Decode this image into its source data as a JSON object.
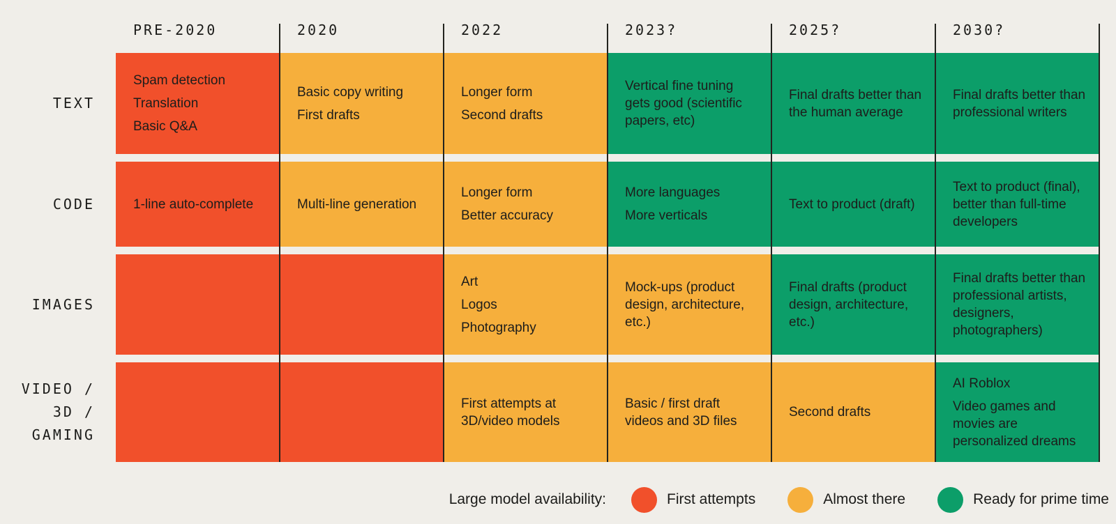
{
  "palette": {
    "background": "#F0EEE9",
    "orange": "#F1502B",
    "yellow": "#F6AF3C",
    "green": "#0C9E69",
    "divider": "#23241F",
    "text": "#1D1D1B"
  },
  "columns": [
    "PRE-2020",
    "2020",
    "2022",
    "2023?",
    "2025?",
    "2030?"
  ],
  "rows": [
    {
      "label": "TEXT",
      "label_lines": [
        "TEXT"
      ],
      "cells": [
        {
          "status": "orange",
          "items": [
            "Spam detection",
            "Translation",
            "Basic Q&A"
          ]
        },
        {
          "status": "yellow",
          "items": [
            "Basic copy writing",
            "First drafts"
          ]
        },
        {
          "status": "yellow",
          "items": [
            "Longer form",
            "Second drafts"
          ]
        },
        {
          "status": "green",
          "items": [
            "Vertical fine tuning gets good (scientific papers, etc)"
          ]
        },
        {
          "status": "green",
          "items": [
            "Final drafts better than the human average"
          ]
        },
        {
          "status": "green",
          "items": [
            "Final drafts better than professional writers"
          ]
        }
      ]
    },
    {
      "label": "CODE",
      "label_lines": [
        "CODE"
      ],
      "cells": [
        {
          "status": "orange",
          "items": [
            "1-line auto-complete"
          ]
        },
        {
          "status": "yellow",
          "items": [
            "Multi-line generation"
          ]
        },
        {
          "status": "yellow",
          "items": [
            "Longer form",
            "Better accuracy"
          ]
        },
        {
          "status": "green",
          "items": [
            "More languages",
            "More verticals"
          ]
        },
        {
          "status": "green",
          "items": [
            "Text to product (draft)"
          ]
        },
        {
          "status": "green",
          "items": [
            "Text to product (final), better than full-time developers"
          ]
        }
      ]
    },
    {
      "label": "IMAGES",
      "label_lines": [
        "IMAGES"
      ],
      "cells": [
        {
          "status": "orange",
          "items": []
        },
        {
          "status": "orange",
          "items": []
        },
        {
          "status": "yellow",
          "items": [
            "Art",
            "Logos",
            "Photography"
          ]
        },
        {
          "status": "yellow",
          "items": [
            "Mock-ups (product design, architecture, etc.)"
          ]
        },
        {
          "status": "green",
          "items": [
            "Final drafts (product design, architecture, etc.)"
          ]
        },
        {
          "status": "green",
          "items": [
            "Final drafts better than professional artists, designers, photographers)"
          ]
        }
      ]
    },
    {
      "label": "VIDEO / 3D / GAMING",
      "label_lines": [
        "VIDEO /",
        "3D /",
        "GAMING"
      ],
      "cells": [
        {
          "status": "orange",
          "items": []
        },
        {
          "status": "orange",
          "items": []
        },
        {
          "status": "yellow",
          "items": [
            "First attempts at 3D/video models"
          ]
        },
        {
          "status": "yellow",
          "items": [
            "Basic / first draft videos and 3D files"
          ]
        },
        {
          "status": "yellow",
          "items": [
            "Second drafts"
          ]
        },
        {
          "status": "green",
          "items": [
            "AI Roblox",
            "Video games and movies are personalized dreams"
          ]
        }
      ]
    }
  ],
  "legend": {
    "label": "Large model availability:",
    "items": [
      {
        "color": "#F1502B",
        "label": "First attempts"
      },
      {
        "color": "#F6AF3C",
        "label": "Almost there"
      },
      {
        "color": "#0C9E69",
        "label": "Ready for prime time"
      }
    ]
  },
  "chart_data": {
    "type": "heatmap",
    "title": "Large model availability",
    "x_labels": [
      "PRE-2020",
      "2020",
      "2022",
      "2023?",
      "2025?",
      "2030?"
    ],
    "y_labels": [
      "TEXT",
      "CODE",
      "IMAGES",
      "VIDEO / 3D / GAMING"
    ],
    "legend": [
      {
        "label": "First attempts",
        "color": "#F1502B",
        "key": "first_attempts"
      },
      {
        "label": "Almost there",
        "color": "#F6AF3C",
        "key": "almost_there"
      },
      {
        "label": "Ready for prime time",
        "color": "#0C9E69",
        "key": "ready_for_prime_time"
      }
    ],
    "values": [
      [
        "first_attempts",
        "almost_there",
        "almost_there",
        "ready_for_prime_time",
        "ready_for_prime_time",
        "ready_for_prime_time"
      ],
      [
        "first_attempts",
        "almost_there",
        "almost_there",
        "ready_for_prime_time",
        "ready_for_prime_time",
        "ready_for_prime_time"
      ],
      [
        "first_attempts",
        "first_attempts",
        "almost_there",
        "almost_there",
        "ready_for_prime_time",
        "ready_for_prime_time"
      ],
      [
        "first_attempts",
        "first_attempts",
        "almost_there",
        "almost_there",
        "almost_there",
        "ready_for_prime_time"
      ]
    ],
    "notes": [
      [
        "Spam detection; Translation; Basic Q&A",
        "Basic copy writing; First drafts",
        "Longer form; Second drafts",
        "Vertical fine tuning gets good (scientific papers, etc)",
        "Final drafts better than the human average",
        "Final drafts better than professional writers"
      ],
      [
        "1-line auto-complete",
        "Multi-line generation",
        "Longer form; Better accuracy",
        "More languages; More verticals",
        "Text to product (draft)",
        "Text to product (final), better than full-time developers"
      ],
      [
        "",
        "",
        "Art; Logos; Photography",
        "Mock-ups (product design, architecture, etc.)",
        "Final drafts (product design, architecture, etc.)",
        "Final drafts better than professional artists, designers, photographers)"
      ],
      [
        "",
        "",
        "First attempts at 3D/video models",
        "Basic / first draft videos and 3D files",
        "Second drafts",
        "AI Roblox; Video games and movies are personalized dreams"
      ]
    ],
    "grid": "vertical column dividers only",
    "legend_position": "bottom-right"
  }
}
